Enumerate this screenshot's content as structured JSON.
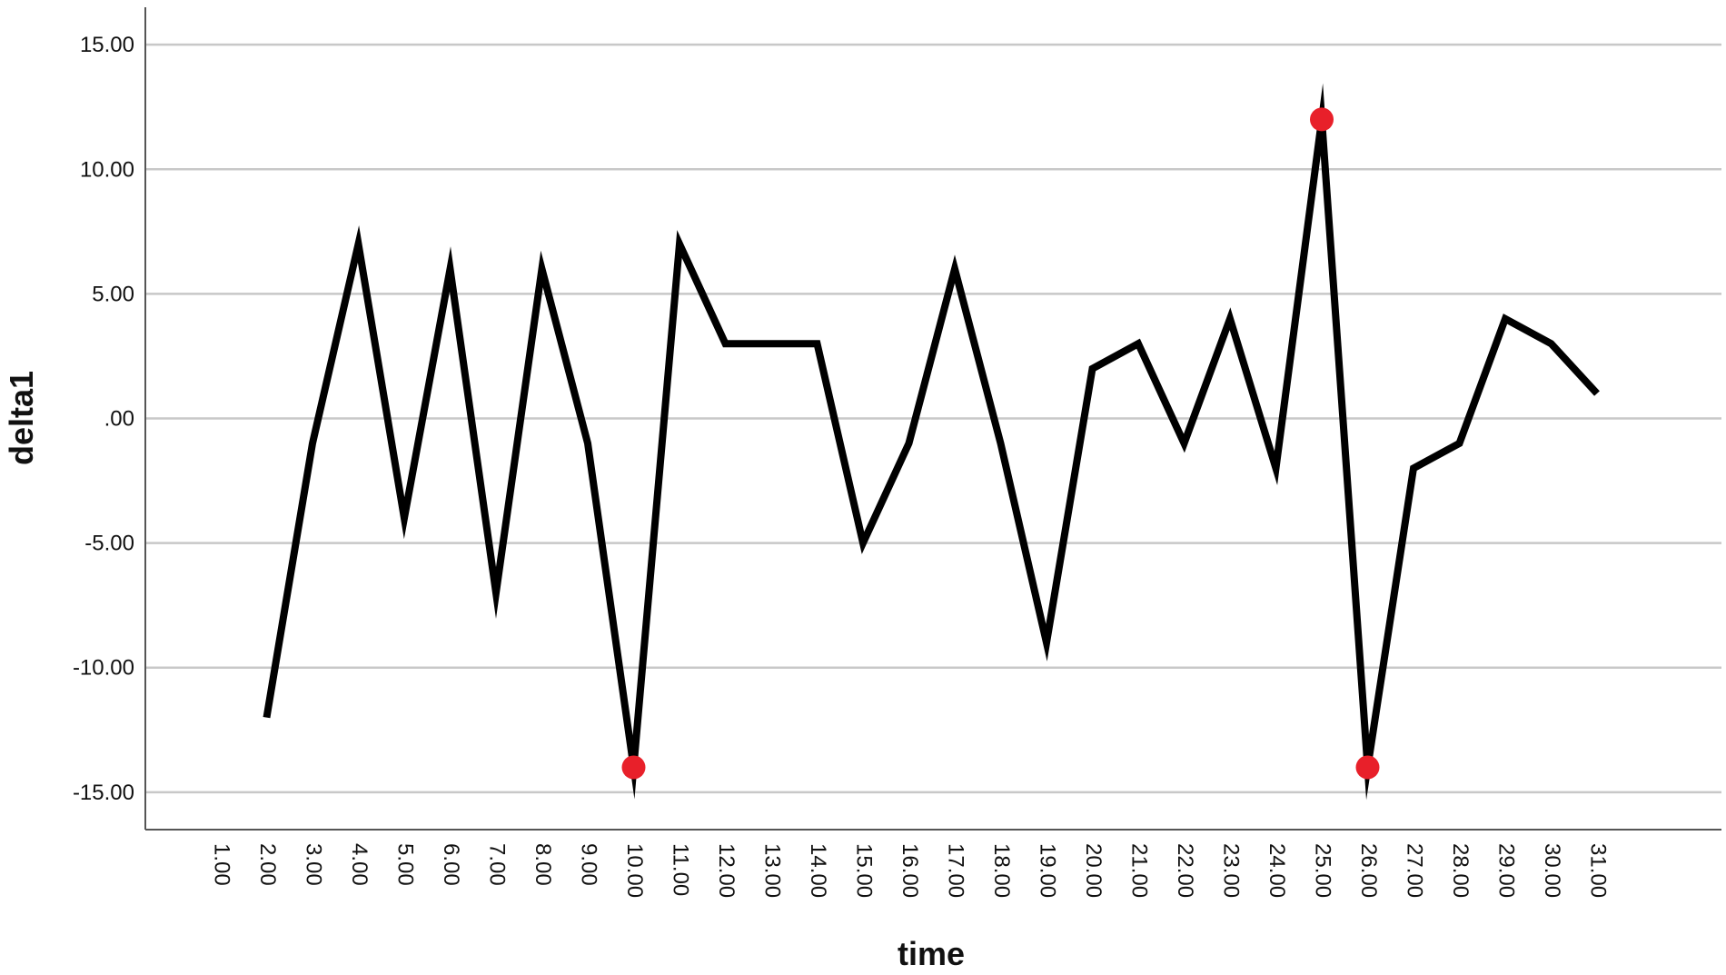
{
  "chart_data": {
    "type": "line",
    "xlabel": "time",
    "ylabel": "delta1",
    "ylim": [
      -16.5,
      16.5
    ],
    "yticks": [
      15,
      10,
      5,
      0,
      -5,
      -10,
      -15
    ],
    "ytick_labels": [
      "15.00",
      "10.00",
      "5.00",
      ".00",
      "-5.00",
      "-10.00",
      "-15.00"
    ],
    "grid": true,
    "categories": [
      "1.00",
      "2.00",
      "3.00",
      "4.00",
      "5.00",
      "6.00",
      "7.00",
      "8.00",
      "9.00",
      "10.00",
      "11.00",
      "12.00",
      "13.00",
      "14.00",
      "15.00",
      "16.00",
      "17.00",
      "18.00",
      "19.00",
      "20.00",
      "21.00",
      "22.00",
      "23.00",
      "24.00",
      "25.00",
      "26.00",
      "27.00",
      "28.00",
      "29.00",
      "30.00",
      "31.00"
    ],
    "series": [
      {
        "values": [
          null,
          -12,
          -1,
          7,
          -4,
          6,
          -7,
          6,
          -1,
          -14,
          7,
          3,
          3,
          3,
          -5,
          -1,
          6,
          -1,
          -9,
          2,
          3,
          -1,
          4,
          -2,
          12,
          -14,
          -2,
          -1,
          4,
          3,
          1
        ],
        "color": "#000000"
      }
    ],
    "highlighted_points": [
      {
        "category": "10.00",
        "value": -14
      },
      {
        "category": "25.00",
        "value": 12
      },
      {
        "category": "26.00",
        "value": -14
      }
    ],
    "highlight_color": "#e8202a"
  }
}
